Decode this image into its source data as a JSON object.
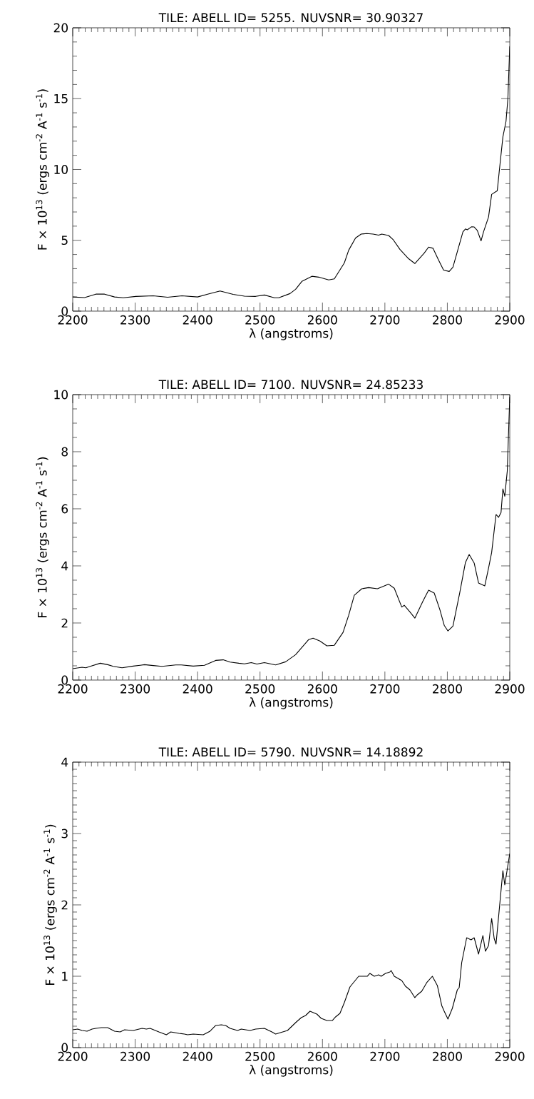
{
  "chart_data": [
    {
      "type": "line",
      "title": "TILE: ABELL ID= 5255. NUVSNR= 30.90327",
      "xlabel": "λ (angstroms)",
      "ylabel": "F × 10$^{13}$ (ergs cm$^{-2}$ A$^{-1}$ s$^{-1}$)",
      "xlim": [
        2200,
        2900
      ],
      "ylim": [
        0,
        20
      ],
      "xticks": [
        2200,
        2300,
        2400,
        2500,
        2600,
        2700,
        2800,
        2900
      ],
      "yticks": [
        0,
        5,
        10,
        15,
        20
      ],
      "x": [
        2200,
        2219,
        2237,
        2251,
        2267,
        2281,
        2301,
        2329,
        2352,
        2375,
        2400,
        2416,
        2436,
        2457,
        2475,
        2493,
        2507,
        2523,
        2530,
        2548,
        2557,
        2567,
        2583,
        2594,
        2610,
        2619,
        2635,
        2642,
        2653,
        2662,
        2671,
        2681,
        2690,
        2695,
        2706,
        2713,
        2724,
        2738,
        2748,
        2763,
        2770,
        2777,
        2786,
        2794,
        2803,
        2809,
        2825,
        2829,
        2832,
        2839,
        2843,
        2848,
        2854,
        2858,
        2866,
        2871,
        2880,
        2883,
        2889,
        2894,
        2897,
        2900
      ],
      "series": [
        {
          "color": "#000000",
          "values": [
            1.0,
            0.96,
            1.2,
            1.2,
            1.0,
            0.94,
            1.04,
            1.08,
            0.98,
            1.08,
            1.0,
            1.2,
            1.42,
            1.18,
            1.06,
            1.04,
            1.14,
            0.94,
            0.94,
            1.24,
            1.54,
            2.1,
            2.46,
            2.4,
            2.2,
            2.28,
            3.4,
            4.3,
            5.16,
            5.44,
            5.48,
            5.44,
            5.36,
            5.44,
            5.34,
            5.06,
            4.36,
            3.7,
            3.36,
            4.1,
            4.52,
            4.44,
            3.6,
            2.9,
            2.8,
            3.1,
            5.6,
            5.8,
            5.74,
            5.96,
            5.94,
            5.7,
            4.96,
            5.6,
            6.64,
            8.24,
            8.5,
            9.8,
            12.3,
            13.4,
            15.0,
            18.7
          ]
        }
      ]
    },
    {
      "type": "line",
      "title": "TILE: ABELL ID= 7100. NUVSNR= 24.85233",
      "xlabel": "λ (angstroms)",
      "ylabel": "F × 10$^{13}$ (ergs cm$^{-2}$ A$^{-1}$ s$^{-1}$)",
      "xlim": [
        2200,
        2900
      ],
      "ylim": [
        0,
        10
      ],
      "xticks": [
        2200,
        2300,
        2400,
        2500,
        2600,
        2700,
        2800,
        2900
      ],
      "yticks": [
        0,
        2,
        4,
        6,
        8,
        10
      ],
      "x": [
        2200,
        2215,
        2221,
        2228,
        2244,
        2256,
        2265,
        2279,
        2297,
        2308,
        2315,
        2329,
        2343,
        2365,
        2374,
        2393,
        2411,
        2429,
        2441,
        2452,
        2466,
        2475,
        2486,
        2495,
        2507,
        2525,
        2541,
        2557,
        2578,
        2585,
        2596,
        2607,
        2619,
        2633,
        2642,
        2651,
        2663,
        2674,
        2688,
        2695,
        2706,
        2715,
        2727,
        2731,
        2740,
        2748,
        2761,
        2770,
        2779,
        2788,
        2795,
        2801,
        2809,
        2820,
        2829,
        2835,
        2843,
        2850,
        2860,
        2866,
        2871,
        2878,
        2882,
        2886,
        2889,
        2892,
        2896,
        2900
      ],
      "series": [
        {
          "color": "#000000",
          "values": [
            0.4,
            0.45,
            0.43,
            0.48,
            0.59,
            0.54,
            0.48,
            0.43,
            0.49,
            0.52,
            0.54,
            0.51,
            0.48,
            0.53,
            0.53,
            0.49,
            0.52,
            0.69,
            0.71,
            0.63,
            0.59,
            0.57,
            0.61,
            0.56,
            0.61,
            0.53,
            0.64,
            0.89,
            1.42,
            1.47,
            1.37,
            1.2,
            1.22,
            1.67,
            2.27,
            2.97,
            3.2,
            3.24,
            3.2,
            3.26,
            3.36,
            3.22,
            2.56,
            2.62,
            2.39,
            2.17,
            2.77,
            3.15,
            3.05,
            2.47,
            1.92,
            1.72,
            1.89,
            3.07,
            4.12,
            4.4,
            4.1,
            3.4,
            3.3,
            3.92,
            4.47,
            5.8,
            5.7,
            5.87,
            6.7,
            6.44,
            7.32,
            9.92
          ]
        }
      ]
    },
    {
      "type": "line",
      "title": "TILE: ABELL ID= 5790. NUVSNR= 14.18892",
      "xlabel": "λ (angstroms)",
      "ylabel": "F × 10$^{13}$ (ergs cm$^{-2}$ A$^{-1}$ s$^{-1}$)",
      "xlim": [
        2200,
        2900
      ],
      "ylim": [
        0,
        4
      ],
      "xticks": [
        2200,
        2300,
        2400,
        2500,
        2600,
        2700,
        2800,
        2900
      ],
      "yticks": [
        0,
        1,
        2,
        3,
        4
      ],
      "x": [
        2200,
        2208,
        2215,
        2223,
        2231,
        2237,
        2246,
        2256,
        2267,
        2276,
        2283,
        2297,
        2311,
        2318,
        2324,
        2338,
        2350,
        2357,
        2370,
        2379,
        2384,
        2393,
        2409,
        2420,
        2429,
        2438,
        2445,
        2452,
        2464,
        2470,
        2484,
        2493,
        2507,
        2519,
        2525,
        2544,
        2557,
        2566,
        2573,
        2580,
        2591,
        2598,
        2607,
        2616,
        2621,
        2628,
        2635,
        2644,
        2658,
        2672,
        2676,
        2683,
        2690,
        2694,
        2701,
        2708,
        2710,
        2715,
        2727,
        2733,
        2740,
        2748,
        2752,
        2759,
        2767,
        2776,
        2784,
        2791,
        2795,
        2801,
        2808,
        2816,
        2819,
        2823,
        2831,
        2838,
        2843,
        2850,
        2857,
        2861,
        2866,
        2871,
        2875,
        2878,
        2889,
        2892,
        2900
      ],
      "series": [
        {
          "color": "#000000",
          "values": [
            0.25,
            0.26,
            0.24,
            0.23,
            0.26,
            0.27,
            0.28,
            0.28,
            0.23,
            0.22,
            0.25,
            0.24,
            0.27,
            0.26,
            0.27,
            0.22,
            0.18,
            0.22,
            0.2,
            0.19,
            0.18,
            0.19,
            0.18,
            0.23,
            0.31,
            0.32,
            0.31,
            0.27,
            0.24,
            0.26,
            0.24,
            0.26,
            0.27,
            0.22,
            0.19,
            0.24,
            0.35,
            0.42,
            0.45,
            0.51,
            0.47,
            0.41,
            0.38,
            0.38,
            0.43,
            0.48,
            0.63,
            0.85,
            1.0,
            1.0,
            1.04,
            1.0,
            1.02,
            1.0,
            1.04,
            1.06,
            1.08,
            1.0,
            0.94,
            0.86,
            0.81,
            0.7,
            0.74,
            0.79,
            0.91,
            1.0,
            0.87,
            0.59,
            0.51,
            0.4,
            0.55,
            0.81,
            0.84,
            1.19,
            1.54,
            1.51,
            1.54,
            1.31,
            1.57,
            1.35,
            1.43,
            1.81,
            1.53,
            1.45,
            2.48,
            2.28,
            2.72
          ]
        }
      ]
    }
  ]
}
